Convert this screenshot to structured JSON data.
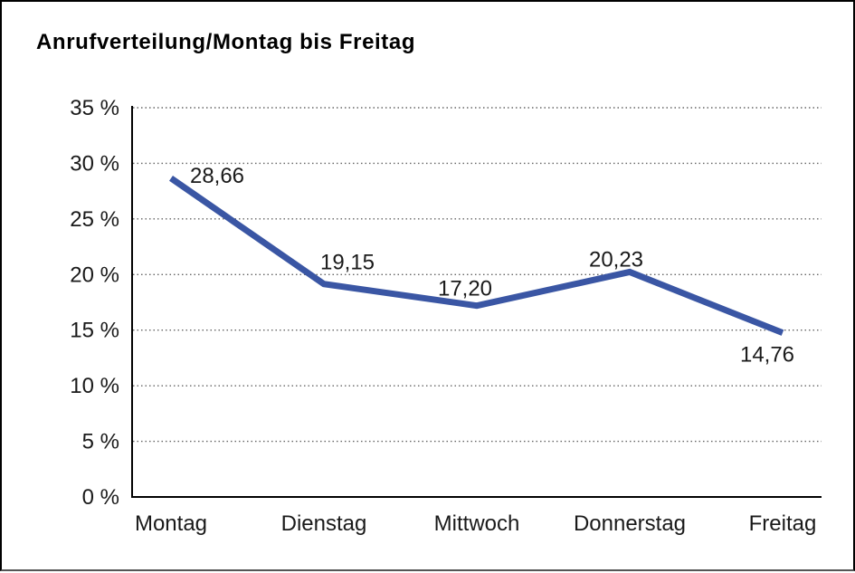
{
  "title": "Anrufverteilung/Montag bis Freitag",
  "colors": {
    "line": "#3A56A4",
    "grid": "#666666",
    "axis": "#000000",
    "text": "#1a1a1a",
    "frame_border": "#000000"
  },
  "chart_data": {
    "type": "line",
    "title": "Anrufverteilung/Montag bis Freitag",
    "categories": [
      "Montag",
      "Dienstag",
      "Mittwoch",
      "Donnerstag",
      "Freitag"
    ],
    "values": [
      28.66,
      19.15,
      17.2,
      20.23,
      14.76
    ],
    "point_labels": [
      "28,66",
      "19,15",
      "17,20",
      "20,23",
      "14,76"
    ],
    "xlabel": "",
    "ylabel": "",
    "ylim": [
      0,
      35
    ],
    "ytick_step": 5,
    "ytick_labels": [
      "0 %",
      "5 %",
      "10 %",
      "15 %",
      "20 %",
      "25 %",
      "30 %",
      "35 %"
    ],
    "grid": "horizontal-dotted",
    "legend": "none",
    "line_width": 7
  }
}
